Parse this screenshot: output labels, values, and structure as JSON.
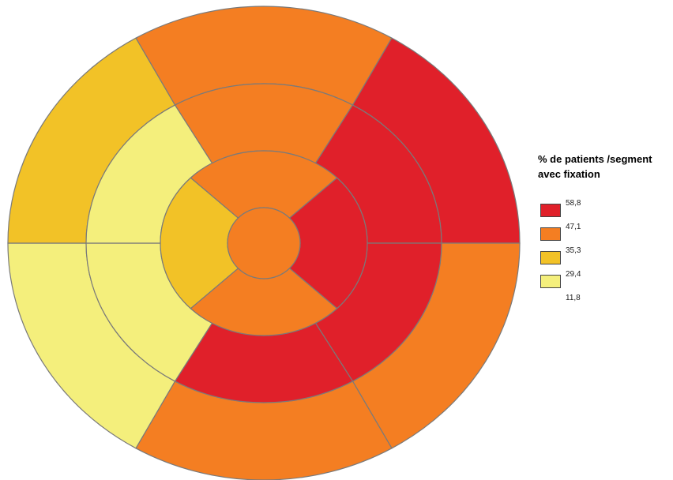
{
  "chart_data": {
    "type": "bullseye",
    "legend": {
      "title_lines": [
        "% de patients /segment",
        "avec fixation"
      ],
      "ticks": [
        "58,8",
        "47,1",
        "35,3",
        "29,4",
        "11,8"
      ],
      "bins": [
        {
          "color": "#e0202a",
          "from": 47.1,
          "to": 58.8
        },
        {
          "color": "#f47e22",
          "from": 35.3,
          "to": 47.1
        },
        {
          "color": "#f2c227",
          "from": 29.4,
          "to": 35.3
        },
        {
          "color": "#f4ef7c",
          "from": 11.8,
          "to": 29.4
        }
      ],
      "placement": "right"
    },
    "rings": [
      {
        "name": "outer",
        "segments": [
          {
            "angle_from": 240,
            "angle_to": 300,
            "color": "#f47e22"
          },
          {
            "angle_from": 300,
            "angle_to": 360,
            "color": "#e0202a"
          },
          {
            "angle_from": 0,
            "angle_to": 60,
            "color": "#f47e22"
          },
          {
            "angle_from": 60,
            "angle_to": 120,
            "color": "#f47e22"
          },
          {
            "angle_from": 120,
            "angle_to": 180,
            "color": "#f4ef7c"
          },
          {
            "angle_from": 180,
            "angle_to": 240,
            "color": "#f2c227"
          }
        ]
      },
      {
        "name": "middle",
        "segments": [
          {
            "angle_from": 240,
            "angle_to": 300,
            "color": "#f47e22"
          },
          {
            "angle_from": 300,
            "angle_to": 360,
            "color": "#e0202a"
          },
          {
            "angle_from": 0,
            "angle_to": 60,
            "color": "#e0202a"
          },
          {
            "angle_from": 60,
            "angle_to": 120,
            "color": "#e0202a"
          },
          {
            "angle_from": 120,
            "angle_to": 180,
            "color": "#f4ef7c"
          },
          {
            "angle_from": 180,
            "angle_to": 240,
            "color": "#f4ef7c"
          }
        ]
      },
      {
        "name": "inner",
        "segments": [
          {
            "angle_from": 225,
            "angle_to": 315,
            "color": "#f47e22"
          },
          {
            "angle_from": 315,
            "angle_to": 405,
            "color": "#e0202a"
          },
          {
            "angle_from": 45,
            "angle_to": 135,
            "color": "#f47e22"
          },
          {
            "angle_from": 135,
            "angle_to": 225,
            "color": "#f2c227"
          }
        ]
      },
      {
        "name": "apex",
        "segments": [
          {
            "angle_from": 0,
            "angle_to": 360,
            "color": "#f47e22"
          }
        ]
      }
    ]
  }
}
